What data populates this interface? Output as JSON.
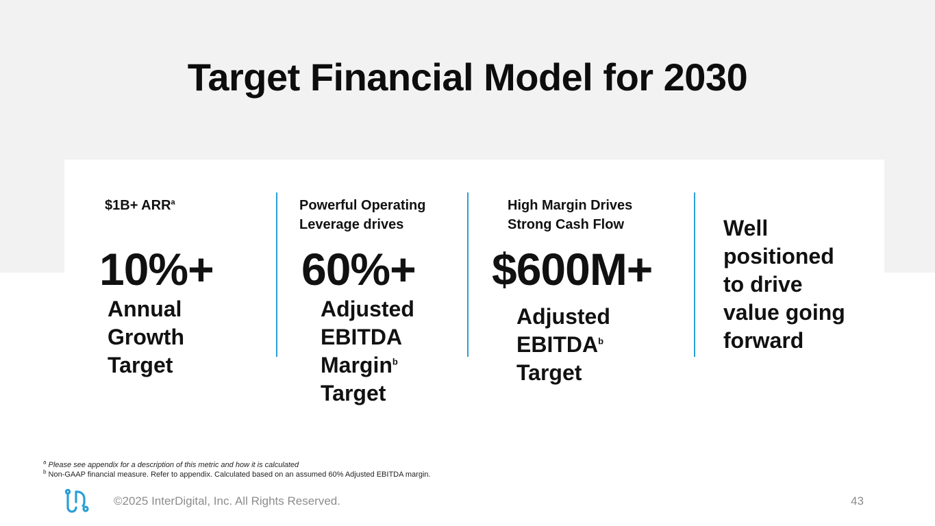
{
  "slide": {
    "title": "Target Financial Model for 2030",
    "accent_color": "#2a9fd6"
  },
  "columns": [
    {
      "caption_line1": "$1B+ ARR",
      "caption_sup": "a",
      "big_value": "10%+",
      "desc_lines": [
        "Annual",
        "Growth",
        "Target"
      ]
    },
    {
      "caption_line1": "Powerful Operating",
      "caption_line2": "Leverage drives",
      "big_value": "60%+",
      "desc_lines": [
        "Adjusted",
        "EBITDA",
        "Margin",
        "Target"
      ],
      "desc_sup": "b"
    },
    {
      "caption_line1": "High Margin Drives",
      "caption_line2": "Strong Cash Flow",
      "big_value": "$600M+",
      "desc_lines": [
        "Adjusted",
        "EBITDA",
        "Target"
      ],
      "desc_sup": "b"
    },
    {
      "desc_lines": [
        "Well",
        "positioned",
        "to drive",
        "value going",
        "forward"
      ]
    }
  ],
  "footnotes": {
    "a_mark": "a",
    "a_text": "Please see appendix for a description of this metric and how it is calculated",
    "b_mark": "b",
    "b_text": "Non-GAAP financial measure. Refer to appendix. Calculated based on an assumed 60% Adjusted EBITDA margin."
  },
  "footer": {
    "logo_icon": "interdigital-logo-icon",
    "copyright": "©2025 InterDigital, Inc. All Rights Reserved.",
    "page_number": "43"
  }
}
